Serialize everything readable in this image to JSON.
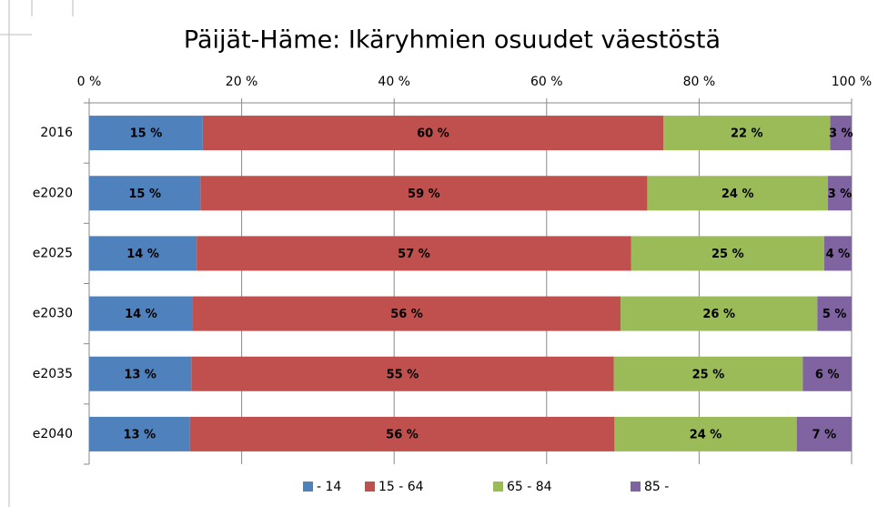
{
  "chart_data": {
    "type": "stacked_bar_horizontal_percent",
    "title": "Päijät-Häme: Ikäryhmien osuudet väestöstä",
    "categories": [
      "2016",
      "e2020",
      "e2025",
      "e2030",
      "e2035",
      "e2040"
    ],
    "series": [
      {
        "name": "- 14",
        "color": "#4f81bd",
        "values": [
          14.9,
          14.6,
          14.1,
          13.6,
          13.4,
          13.2
        ],
        "value_labels": [
          "15 %",
          "15 %",
          "14 %",
          "14 %",
          "13 %",
          "13 %"
        ]
      },
      {
        "name": "15 - 64",
        "color": "#c0504d",
        "values": [
          60.4,
          58.6,
          57.0,
          56.1,
          55.4,
          55.7
        ],
        "value_labels": [
          "60 %",
          "59 %",
          "57 %",
          "56 %",
          "55 %",
          "56 %"
        ]
      },
      {
        "name": "65 - 84",
        "color": "#9bbb59",
        "values": [
          21.9,
          23.7,
          25.3,
          25.8,
          24.8,
          23.9
        ],
        "value_labels": [
          "22 %",
          "24 %",
          "25 %",
          "26 %",
          "25 %",
          "24 %"
        ]
      },
      {
        "name": "85 -",
        "color": "#8064a2",
        "values": [
          2.8,
          3.1,
          3.6,
          4.5,
          6.4,
          7.2
        ],
        "value_labels": [
          "3 %",
          "3 %",
          "4 %",
          "5 %",
          "6 %",
          "7 %"
        ]
      }
    ],
    "xlim": [
      0,
      100
    ],
    "xticks": [
      {
        "value": 0,
        "label": "0 %"
      },
      {
        "value": 20,
        "label": "20 %"
      },
      {
        "value": 40,
        "label": "40 %"
      },
      {
        "value": 60,
        "label": "60 %"
      },
      {
        "value": 80,
        "label": "80 %"
      },
      {
        "value": 100,
        "label": "100 %"
      }
    ],
    "grid": true,
    "legend": "bottom"
  }
}
